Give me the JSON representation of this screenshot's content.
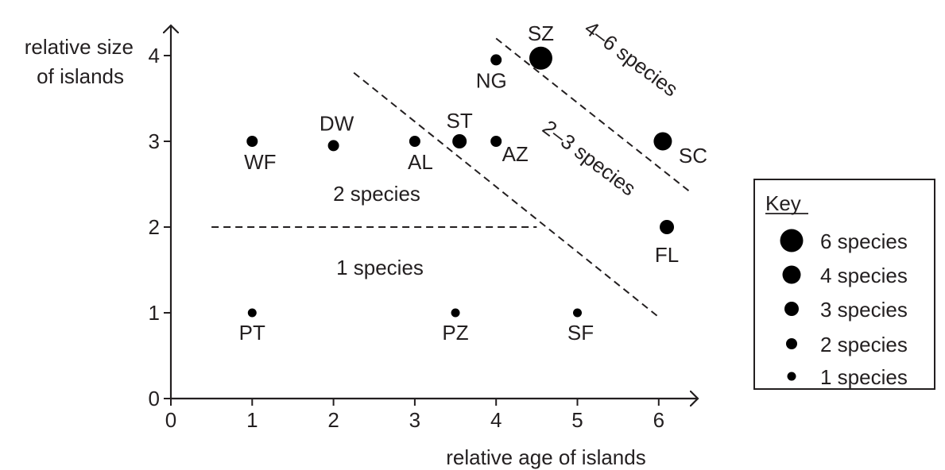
{
  "chart_data": {
    "type": "scatter",
    "xlabel": "relative age of islands",
    "ylabel_line1": "relative size",
    "ylabel_line2": "of islands",
    "xlim": [
      0,
      6.5
    ],
    "ylim": [
      0,
      4.3
    ],
    "x_ticks": [
      "0",
      "1",
      "2",
      "3",
      "4",
      "5",
      "6"
    ],
    "y_ticks": [
      "0",
      "1",
      "2",
      "3",
      "4"
    ],
    "points": [
      {
        "label": "PT",
        "x": 1.0,
        "y": 1.0,
        "species": 1
      },
      {
        "label": "PZ",
        "x": 3.5,
        "y": 1.0,
        "species": 1
      },
      {
        "label": "SF",
        "x": 5.0,
        "y": 1.0,
        "species": 1
      },
      {
        "label": "WF",
        "x": 1.0,
        "y": 3.0,
        "species": 2
      },
      {
        "label": "DW",
        "x": 2.0,
        "y": 2.95,
        "species": 2
      },
      {
        "label": "AL",
        "x": 3.0,
        "y": 3.0,
        "species": 2
      },
      {
        "label": "AZ",
        "x": 4.0,
        "y": 3.0,
        "species": 2
      },
      {
        "label": "NG",
        "x": 4.0,
        "y": 3.95,
        "species": 2
      },
      {
        "label": "ST",
        "x": 3.55,
        "y": 3.0,
        "species": 3
      },
      {
        "label": "FL",
        "x": 6.1,
        "y": 2.0,
        "species": 3
      },
      {
        "label": "SC",
        "x": 6.05,
        "y": 3.0,
        "species": 4
      },
      {
        "label": "SZ",
        "x": 4.55,
        "y": 3.97,
        "species": 6
      }
    ],
    "dividers": [
      {
        "x1": 0.5,
        "y1": 2.0,
        "x2": 4.5,
        "y2": 2.0
      },
      {
        "x1": 2.25,
        "y1": 3.8,
        "x2": 6.0,
        "y2": 0.95
      },
      {
        "x1": 4.0,
        "y1": 4.2,
        "x2": 6.4,
        "y2": 2.4
      }
    ],
    "region_labels": [
      "1 species",
      "2 species",
      "2–3 species",
      "4–6 species"
    ],
    "key": {
      "title": "Key",
      "entries": [
        {
          "label": "6 species",
          "species": 6
        },
        {
          "label": "4 species",
          "species": 4
        },
        {
          "label": "3 species",
          "species": 3
        },
        {
          "label": "2 species",
          "species": 2
        },
        {
          "label": "1 species",
          "species": 1
        }
      ]
    }
  }
}
